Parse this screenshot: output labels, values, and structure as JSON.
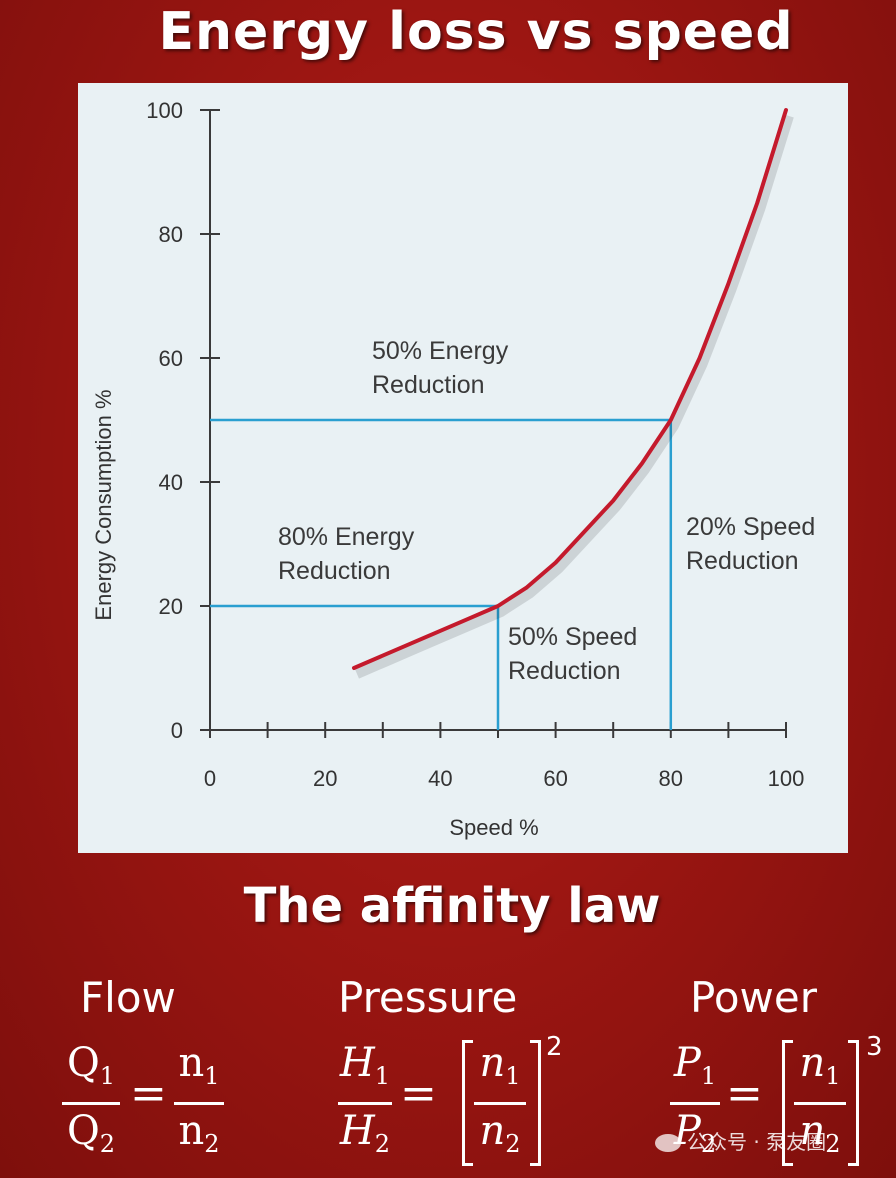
{
  "header": {
    "title": "Energy loss vs speed"
  },
  "chart_data": {
    "type": "line",
    "xlabel": "Speed %",
    "ylabel": "Energy Consumption %",
    "xlim": [
      0,
      100
    ],
    "ylim": [
      0,
      100
    ],
    "x_ticks": [
      "0",
      "20",
      "40",
      "60",
      "80",
      "100"
    ],
    "y_ticks": [
      "0",
      "20",
      "40",
      "60",
      "80",
      "100"
    ],
    "series": [
      {
        "x": [
          25,
          30,
          35,
          40,
          45,
          50,
          55,
          60,
          65,
          70,
          75,
          80,
          85,
          90,
          95,
          100
        ],
        "y": [
          10,
          12,
          14,
          16,
          18,
          20,
          23,
          27,
          32,
          37,
          43,
          50,
          60,
          72,
          85,
          100
        ]
      }
    ],
    "reference_lines": [
      {
        "speed": 50,
        "energy": 20
      },
      {
        "speed": 80,
        "energy": 50
      }
    ],
    "annotations": [
      {
        "lines": [
          "50% Energy",
          "Reduction"
        ]
      },
      {
        "lines": [
          "80% Energy",
          "Reduction"
        ]
      },
      {
        "lines": [
          "20% Speed",
          "Reduction"
        ]
      },
      {
        "lines": [
          "50% Speed",
          "Reduction"
        ]
      }
    ],
    "grid": false,
    "colors": {
      "curve": "#c41a2c",
      "reference": "#2a9fd0",
      "axis": "#3a3a3a",
      "background": "#e9f1f4"
    }
  },
  "affinity": {
    "title": "The affinity law",
    "flow": {
      "label": "Flow",
      "num": "Q",
      "den": "Q",
      "rhs_num": "n",
      "rhs_den": "n",
      "sub1": "1",
      "sub2": "2"
    },
    "pressure": {
      "label": "Pressure",
      "num": "H",
      "den": "H",
      "rhs_num": "n",
      "rhs_den": "n",
      "sub1": "1",
      "sub2": "2",
      "power": "2"
    },
    "power": {
      "label": "Power",
      "num": "P",
      "den": "P",
      "rhs_num": "n",
      "rhs_den": "n",
      "sub1": "1",
      "sub2": "2",
      "power": "3"
    },
    "equals": "="
  },
  "watermark": {
    "text": "公众号 · 泵友圈"
  },
  "colors": {
    "background": "#9c1612",
    "text": "#ffffff"
  }
}
